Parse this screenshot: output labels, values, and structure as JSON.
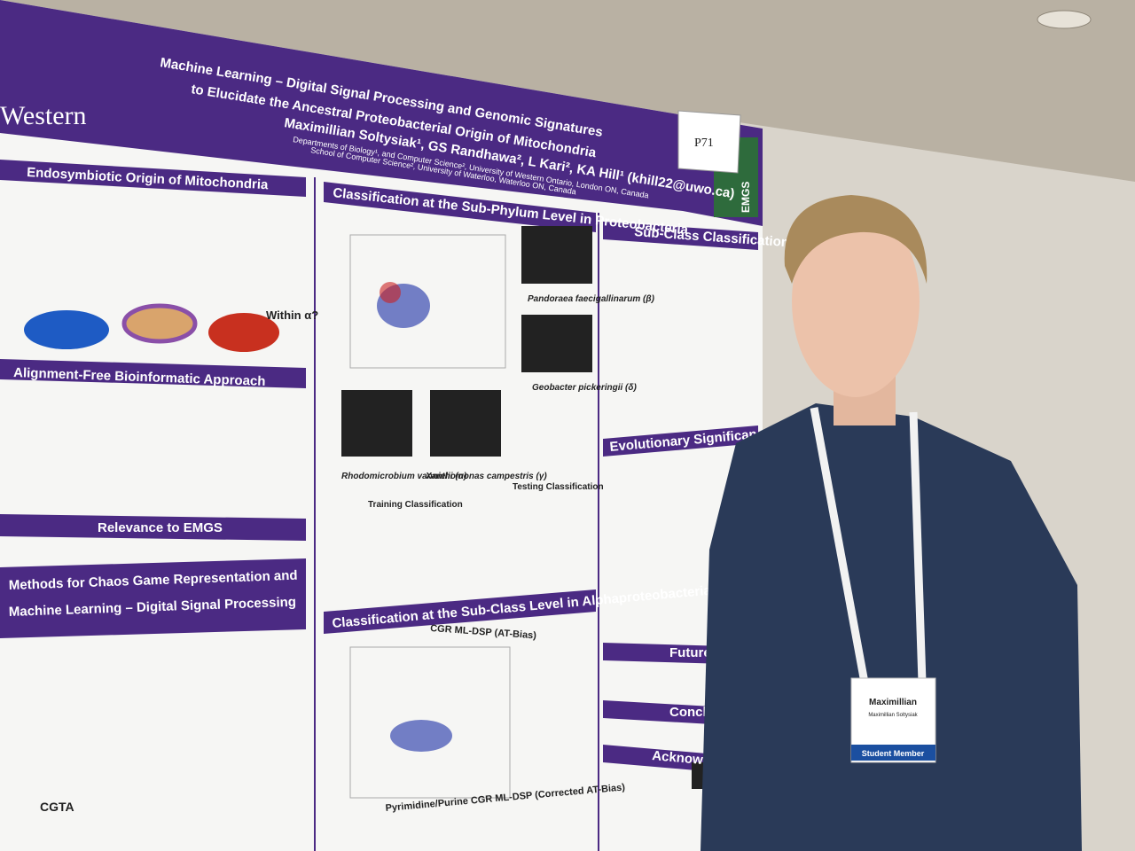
{
  "poster": {
    "logo": "Western",
    "title": [
      "Machine Learning – Digital Signal Processing and Genomic Signatures",
      "to Elucidate the Ancestral Proteobacterial Origin of Mitochondria"
    ],
    "authors": "Maximillian Soltysiak¹, GS Randhawa², L Kari², KA Hill¹ (khill22@uwo.ca)",
    "affiliations": [
      "Departments of Biology¹, and Computer Science², University of Western Ontario, London ON, Canada",
      "School of Computer Science², University of Waterloo, Waterloo ON, Canada"
    ],
    "board_tag": "P71",
    "side_label": "EMGS",
    "sections": [
      "Endosymbiotic Origin of Mitochondria",
      "Alignment-Free Bioinformatic Approach",
      "Relevance to EMGS",
      "Methods for Chaos Game Representation and",
      "Machine Learning – Digital Signal Processing",
      "Classification at the Sub-Phylum Level in Proteobacteria",
      "Classification at the Sub-Class Level in Alphaproteobacteria",
      "Sub-Class Classification and Bias",
      "Evolutionary Significance at the Genera Level",
      "Future Work",
      "Conclusion",
      "Acknowledgements"
    ],
    "labels": [
      "Within α?",
      "Pandoraea faecigallinarum (β)",
      "Geobacter pickeringii (δ)",
      "Rhodomicrobium vannielii (α)",
      "Xanthomonas campestris (γ)",
      "CGR ML-DSP (AT-Bias)",
      "Pyrimidine/Purine CGR ML-DSP (Corrected AT-Bias)",
      "Training Classification",
      "Testing Classification",
      "CGTA"
    ]
  },
  "badge": {
    "name": "Maximillian",
    "full_name": "Maximillian Soltysiak",
    "role": "Student Member"
  }
}
